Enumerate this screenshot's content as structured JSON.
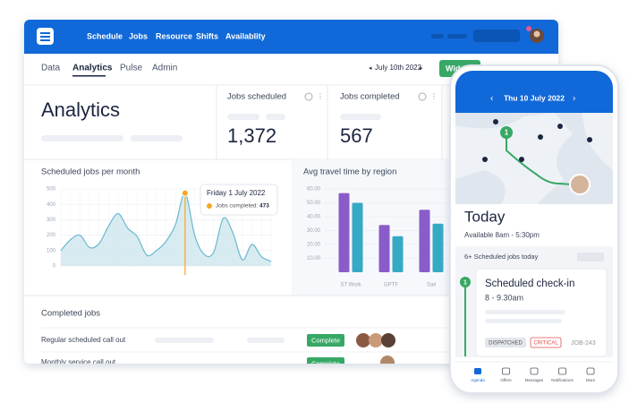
{
  "nav": {
    "items": [
      "Schedule",
      "Jobs",
      "Resource",
      "Shifts",
      "Availablity"
    ]
  },
  "tabs": {
    "items": [
      "Data",
      "Analytics",
      "Pulse",
      "Admin"
    ],
    "date": "July 10th 2022",
    "button": "Wid"
  },
  "page_title": "Analytics",
  "cards": [
    {
      "label": "Jobs scheduled",
      "value": "1,372"
    },
    {
      "label": "Jobs completed",
      "value": "567"
    }
  ],
  "charts": [
    {
      "type": "area",
      "title": "Scheduled jobs per month",
      "color": "#6cb8d0",
      "fill": "#cde6ee",
      "grid": true,
      "ylim": [
        0,
        500
      ],
      "yticks": [
        500,
        400,
        300,
        200,
        100,
        0
      ],
      "values": [
        100,
        170,
        200,
        120,
        145,
        260,
        340,
        245,
        190,
        70,
        100,
        160,
        270,
        473,
        200,
        75,
        90,
        310,
        215,
        40,
        140,
        60,
        30
      ],
      "highlight": {
        "index": 13,
        "title": "Friday 1 July 2022",
        "label": "Jobs completed:",
        "color": "#f5a623"
      }
    },
    {
      "type": "bar",
      "title": "Avg travel time by region",
      "grid": true,
      "ylim": [
        0,
        60
      ],
      "yticks": [
        {
          "value": 60,
          "label": "60.00"
        },
        {
          "value": 50,
          "label": "50.00"
        },
        {
          "value": 40,
          "label": "40.00"
        },
        {
          "value": 30,
          "label": "30.00"
        },
        {
          "value": 20,
          "label": "20.00"
        },
        {
          "value": 10,
          "label": "10.00"
        }
      ],
      "categories": [
        "ST Work",
        "GPTF",
        "Sail"
      ],
      "series": [
        {
          "color": "#8a5cc9",
          "values": [
            57,
            34,
            45
          ]
        },
        {
          "color": "#36a9c5",
          "values": [
            50,
            26,
            35
          ]
        }
      ]
    }
  ],
  "completed_jobs": {
    "title": "Completed jobs",
    "rows": [
      {
        "name": "Regular scheduled call out",
        "status": "Complete"
      },
      {
        "name": "Monthly service call out",
        "status": "Complete"
      }
    ]
  },
  "phone": {
    "date": "Thu 10 July 2022",
    "map_marker": "1",
    "heading": "Today",
    "availability": "Available 8am - 5:30pm",
    "jobs_count": "6+ Scheduled jobs today",
    "job": {
      "step": "1",
      "title": "Scheduled check-in",
      "time": "8 - 9.30am",
      "tags": [
        "DISPATCHED",
        "CRITICAL"
      ],
      "id": "JOB-243"
    },
    "tabs": [
      "Agenda",
      "Offers",
      "Messages",
      "Notifications",
      "More"
    ]
  }
}
